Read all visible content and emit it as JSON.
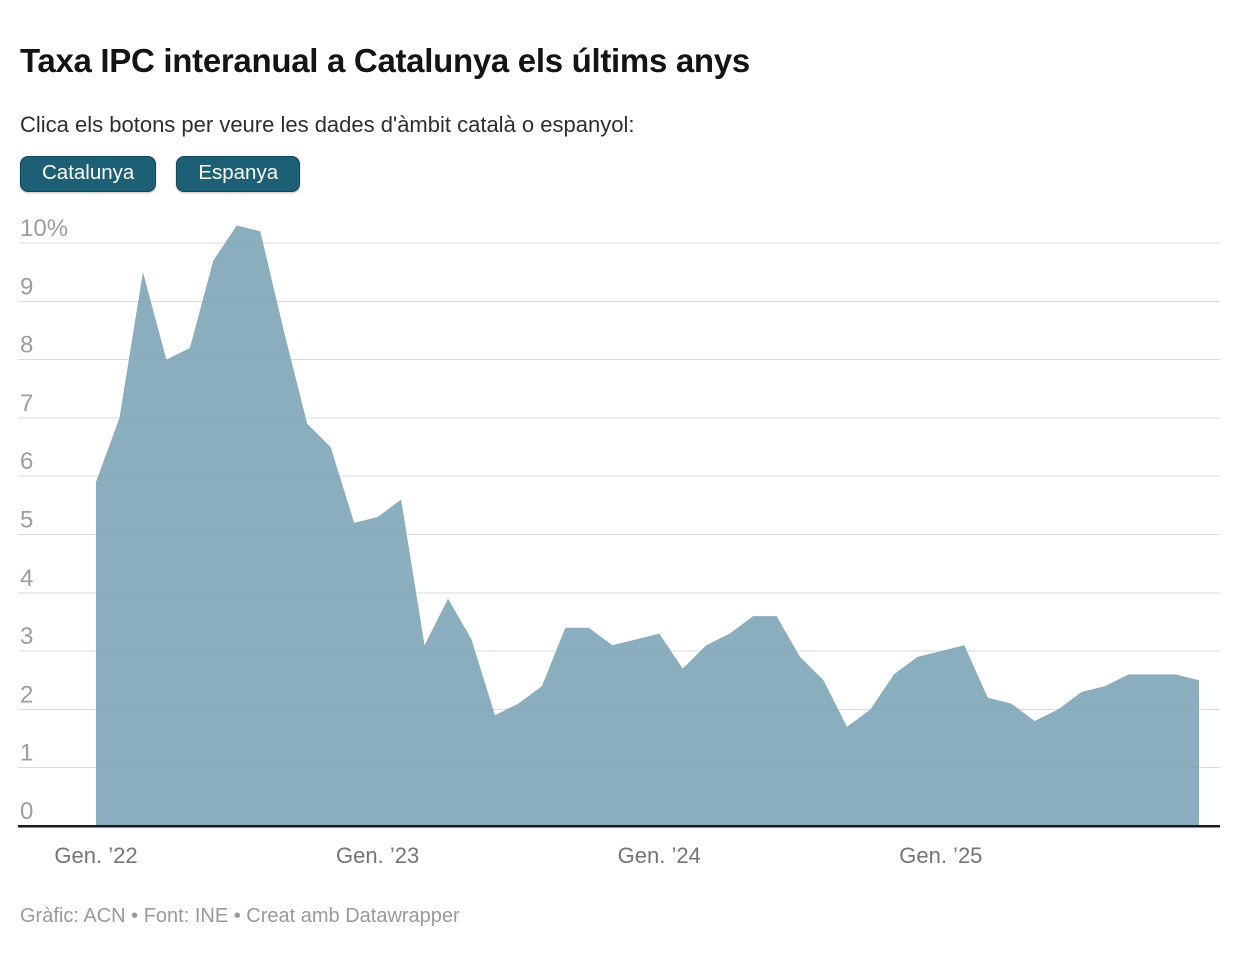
{
  "header": {
    "title": "Taxa IPC interanual a Catalunya els últims anys",
    "subtitle": "Clica els botons per veure les dades d'àmbit català o espanyol:"
  },
  "controls": {
    "buttons": [
      {
        "id": "catalunya",
        "label": "Catalunya",
        "active": true
      },
      {
        "id": "espanya",
        "label": "Espanya",
        "active": false
      }
    ]
  },
  "chart_data": {
    "type": "area",
    "title": "Taxa IPC interanual a Catalunya els últims anys",
    "unit": "%",
    "selected_series": "Catalunya",
    "legend": "none",
    "grid": true,
    "x": [
      "2022-01",
      "2022-02",
      "2022-03",
      "2022-04",
      "2022-05",
      "2022-06",
      "2022-07",
      "2022-08",
      "2022-09",
      "2022-10",
      "2022-11",
      "2022-12",
      "2023-01",
      "2023-02",
      "2023-03",
      "2023-04",
      "2023-05",
      "2023-06",
      "2023-07",
      "2023-08",
      "2023-09",
      "2023-10",
      "2023-11",
      "2023-12",
      "2024-01",
      "2024-02",
      "2024-03",
      "2024-04",
      "2024-05",
      "2024-06",
      "2024-07",
      "2024-08",
      "2024-09",
      "2024-10",
      "2024-11",
      "2024-12",
      "2025-01",
      "2025-02",
      "2025-03",
      "2025-04",
      "2025-05",
      "2025-06",
      "2025-07",
      "2025-08",
      "2025-09",
      "2025-10",
      "2025-11",
      "2025-12"
    ],
    "series": [
      {
        "name": "Catalunya",
        "values": [
          5.9,
          7.0,
          9.5,
          8.0,
          8.2,
          9.7,
          10.3,
          10.2,
          8.5,
          6.9,
          6.5,
          5.2,
          5.3,
          5.6,
          3.1,
          3.9,
          3.2,
          1.9,
          2.1,
          2.4,
          3.4,
          3.4,
          3.1,
          3.2,
          3.3,
          2.7,
          3.1,
          3.3,
          3.6,
          3.6,
          2.9,
          2.5,
          1.7,
          2.0,
          2.6,
          2.9,
          3.0,
          3.1,
          2.2,
          2.1,
          1.8,
          2.0,
          2.3,
          2.4,
          2.6,
          2.6,
          2.6,
          2.5
        ]
      }
    ],
    "ylim": [
      0,
      10
    ],
    "y_ticks": [
      0,
      1,
      2,
      3,
      4,
      5,
      6,
      7,
      8,
      9,
      10
    ],
    "y_tick_labels": [
      "0",
      "1",
      "2",
      "3",
      "4",
      "5",
      "6",
      "7",
      "8",
      "9",
      "10%"
    ],
    "x_tick_labels": [
      {
        "index": 0,
        "label": "Gen. ’22"
      },
      {
        "index": 12,
        "label": "Gen. ’23"
      },
      {
        "index": 24,
        "label": "Gen. ’24"
      },
      {
        "index": 36,
        "label": "Gen. ’25"
      }
    ],
    "colors": {
      "area_fill": "#8aaebd",
      "gridline": "#dbdbdb",
      "axis_line": "#1a1a1a",
      "y_tick_color": "#9d9d9d",
      "x_tick_color": "#757575",
      "button_bg": "#1d5f75"
    }
  },
  "footer": {
    "credit": "Gràfic: ACN • Font: INE • Creat amb Datawrapper"
  }
}
